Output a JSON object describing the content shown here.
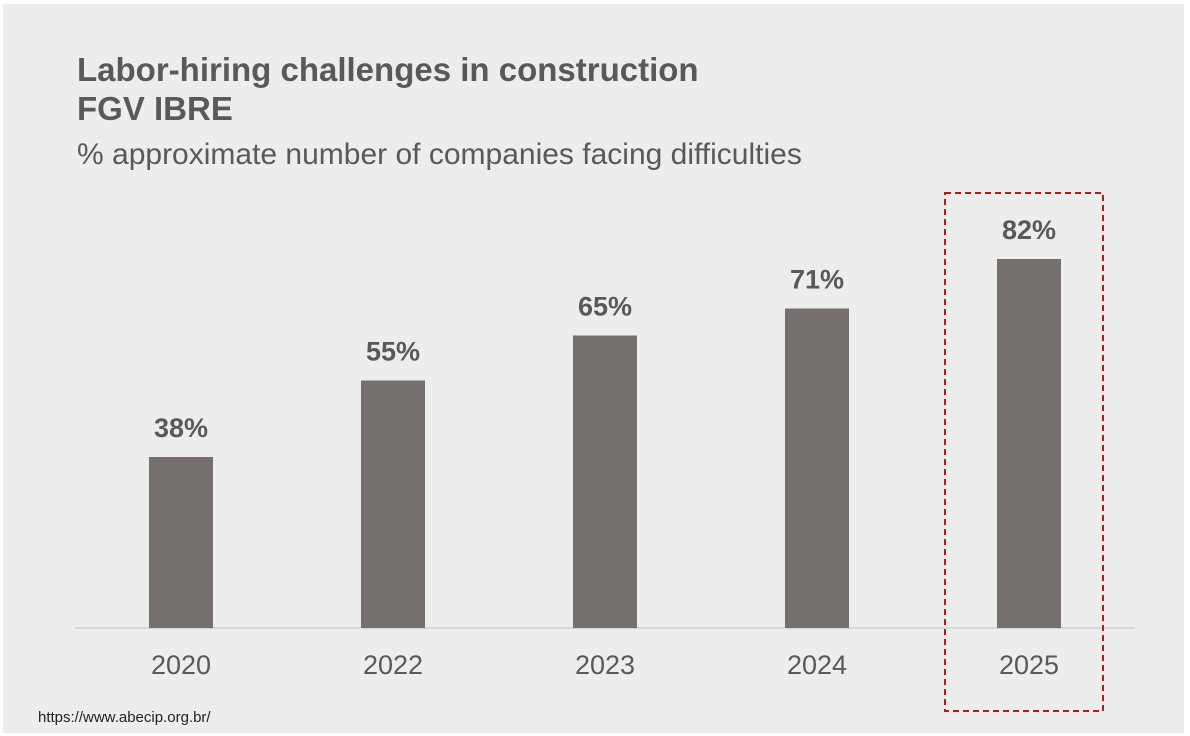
{
  "title_line1": "Labor-hiring challenges in construction",
  "title_line2": "FGV IBRE",
  "subtitle": "% approximate number of companies facing difficulties",
  "source": "https://www.abecip.org.br/",
  "colors": {
    "background": "#ededed",
    "bar": "#75706e",
    "text": "#595959",
    "highlight": "#b31b1b",
    "axis": "#d0d0d0"
  },
  "chart_data": {
    "type": "bar",
    "categories": [
      "2020",
      "2022",
      "2023",
      "2024",
      "2025"
    ],
    "values": [
      38,
      55,
      65,
      71,
      82
    ],
    "data_labels": [
      "38%",
      "55%",
      "65%",
      "71%",
      "82%"
    ],
    "title": "Labor-hiring challenges in construction",
    "subtitle": "% approximate number of companies facing difficulties",
    "xlabel": "",
    "ylabel": "",
    "ylim": [
      0,
      100
    ],
    "grid": false,
    "legend": "none",
    "highlighted_category": "2025"
  }
}
